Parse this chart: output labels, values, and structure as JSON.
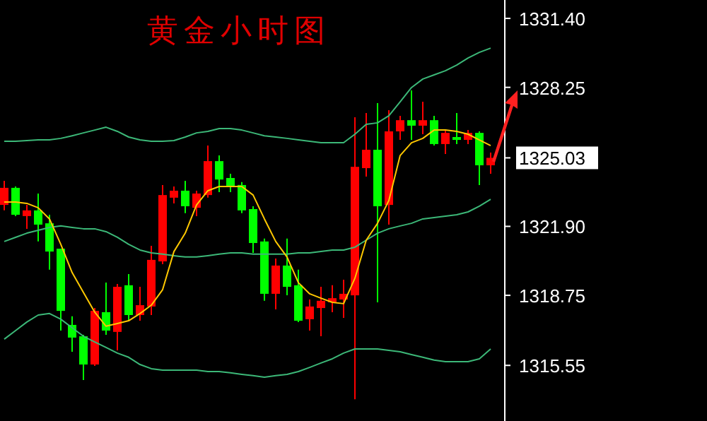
{
  "chart_data": {
    "type": "candlestick",
    "title": "黄金小时图",
    "categories": [
      null,
      null,
      null,
      null,
      null,
      null,
      null,
      null,
      null,
      null,
      null,
      null,
      null,
      null,
      null,
      null,
      null,
      null,
      null,
      null,
      null,
      null,
      null,
      null,
      null,
      null,
      null,
      null,
      null,
      null,
      null,
      null,
      null,
      null,
      null,
      null,
      null,
      null,
      null,
      null,
      null,
      null,
      null,
      null
    ],
    "ohlc": [
      [
        1322.88,
        1323.98,
        1322.63,
        1323.66
      ],
      [
        1323.66,
        1323.72,
        1322.37,
        1322.43
      ],
      [
        1322.37,
        1322.88,
        1321.79,
        1322.63
      ],
      [
        1322.63,
        1323.4,
        1321.21,
        1321.98
      ],
      [
        1322.04,
        1322.43,
        1319.92,
        1320.75
      ],
      [
        1320.88,
        1320.88,
        1317.14,
        1318.04
      ],
      [
        1317.4,
        1317.79,
        1316.17,
        1316.82
      ],
      [
        1316.88,
        1316.95,
        1314.88,
        1315.59
      ],
      [
        1315.59,
        1318.17,
        1315.53,
        1318.04
      ],
      [
        1317.98,
        1319.33,
        1316.95,
        1317.14
      ],
      [
        1317.08,
        1319.27,
        1316.24,
        1319.14
      ],
      [
        1319.21,
        1319.72,
        1317.59,
        1317.85
      ],
      [
        1317.85,
        1319.14,
        1317.59,
        1318.3
      ],
      [
        1318.24,
        1321.01,
        1317.85,
        1320.37
      ],
      [
        1320.3,
        1323.79,
        1320.17,
        1323.33
      ],
      [
        1323.21,
        1323.72,
        1322.95,
        1323.53
      ],
      [
        1323.53,
        1323.98,
        1322.5,
        1322.82
      ],
      [
        1322.75,
        1323.53,
        1322.37,
        1323.4
      ],
      [
        1323.33,
        1325.59,
        1323.21,
        1324.88
      ],
      [
        1324.88,
        1325.14,
        1323.46,
        1324.04
      ],
      [
        1324.11,
        1324.3,
        1323.46,
        1323.72
      ],
      [
        1323.79,
        1323.92,
        1322.5,
        1322.63
      ],
      [
        1322.69,
        1322.82,
        1320.69,
        1321.14
      ],
      [
        1321.21,
        1321.34,
        1318.5,
        1318.82
      ],
      [
        1318.82,
        1320.43,
        1318.11,
        1320.11
      ],
      [
        1320.11,
        1321.34,
        1318.75,
        1319.14
      ],
      [
        1319.21,
        1319.92,
        1317.53,
        1317.59
      ],
      [
        1317.66,
        1318.56,
        1317.14,
        1318.24
      ],
      [
        1318.17,
        1319.14,
        1316.88,
        1318.5
      ],
      [
        1318.43,
        1319.21,
        1317.98,
        1318.62
      ],
      [
        1318.56,
        1319.46,
        1317.72,
        1318.82
      ],
      [
        1318.75,
        1326.88,
        1314.0,
        1324.62
      ],
      [
        1324.56,
        1327.08,
        1324.17,
        1325.4
      ],
      [
        1325.4,
        1327.53,
        1318.43,
        1322.82
      ],
      [
        1322.88,
        1327.21,
        1321.98,
        1326.24
      ],
      [
        1326.24,
        1326.95,
        1325.85,
        1326.75
      ],
      [
        1326.75,
        1328.11,
        1325.85,
        1326.5
      ],
      [
        1326.5,
        1327.59,
        1326.11,
        1326.75
      ],
      [
        1326.75,
        1326.95,
        1325.59,
        1325.66
      ],
      [
        1325.66,
        1326.3,
        1325.21,
        1326.17
      ],
      [
        1325.98,
        1327.08,
        1325.66,
        1325.85
      ],
      [
        1325.85,
        1326.3,
        1325.66,
        1326.17
      ],
      [
        1326.17,
        1326.24,
        1323.79,
        1324.69
      ],
      [
        1324.69,
        1325.27,
        1324.3,
        1325.03
      ]
    ],
    "colors": [
      "#ff0000",
      "#00ff00",
      "#ff0000",
      "#00ff00",
      "#00ff00",
      "#00ff00",
      "#00ff00",
      "#00ff00",
      "#ff0000",
      "#00ff00",
      "#ff0000",
      "#00ff00",
      "#ff0000",
      "#ff0000",
      "#ff0000",
      "#ff0000",
      "#00ff00",
      "#ff0000",
      "#ff0000",
      "#00ff00",
      "#00ff00",
      "#00ff00",
      "#00ff00",
      "#00ff00",
      "#ff0000",
      "#00ff00",
      "#00ff00",
      "#ff0000",
      "#ff0000",
      "#ff0000",
      "#ff0000",
      "#ff0000",
      "#ff0000",
      "#00ff00",
      "#ff0000",
      "#ff0000",
      "#00ff00",
      "#ff0000",
      "#00ff00",
      "#ff0000",
      "#00ff00",
      "#ff0000",
      "#00ff00",
      "#ff0000"
    ],
    "series": [
      {
        "type": "line",
        "color": "#3cb878",
        "values": [
          1325.79,
          1325.79,
          1325.82,
          1325.85,
          1325.85,
          1325.92,
          1326.04,
          1326.17,
          1326.3,
          1326.43,
          1326.24,
          1325.98,
          1325.85,
          1325.79,
          1325.79,
          1325.82,
          1325.98,
          1326.17,
          1326.24,
          1326.37,
          1326.37,
          1326.3,
          1326.17,
          1326.04,
          1325.98,
          1325.92,
          1325.85,
          1325.79,
          1325.72,
          1325.72,
          1325.72,
          1326.11,
          1326.56,
          1326.63,
          1326.95,
          1327.59,
          1328.24,
          1328.63,
          1328.82,
          1329.01,
          1329.27,
          1329.59,
          1329.85,
          1330.04
        ]
      },
      {
        "type": "line",
        "color": "#3cb878",
        "values": [
          1321.21,
          1321.4,
          1321.59,
          1321.72,
          1321.85,
          1321.92,
          1321.85,
          1321.79,
          1321.79,
          1321.66,
          1321.4,
          1321.08,
          1320.82,
          1320.69,
          1320.63,
          1320.56,
          1320.5,
          1320.5,
          1320.56,
          1320.63,
          1320.69,
          1320.69,
          1320.63,
          1320.63,
          1320.63,
          1320.63,
          1320.69,
          1320.69,
          1320.75,
          1320.82,
          1320.82,
          1320.95,
          1321.27,
          1321.59,
          1321.79,
          1321.92,
          1322.04,
          1322.24,
          1322.3,
          1322.37,
          1322.43,
          1322.56,
          1322.82,
          1323.14
        ]
      },
      {
        "type": "line",
        "color": "#3cb878",
        "values": [
          1316.75,
          1317.14,
          1317.53,
          1317.85,
          1317.92,
          1317.66,
          1317.27,
          1316.88,
          1316.62,
          1316.37,
          1316.11,
          1315.92,
          1315.59,
          1315.4,
          1315.33,
          1315.33,
          1315.33,
          1315.33,
          1315.27,
          1315.27,
          1315.21,
          1315.14,
          1315.08,
          1315.01,
          1315.08,
          1315.14,
          1315.27,
          1315.46,
          1315.66,
          1315.85,
          1316.11,
          1316.3,
          1316.3,
          1316.3,
          1316.24,
          1316.17,
          1316.04,
          1315.92,
          1315.79,
          1315.72,
          1315.72,
          1315.72,
          1315.85,
          1316.3
        ]
      },
      {
        "type": "line",
        "color": "#ffc800",
        "values": [
          1323.01,
          1323.01,
          1322.95,
          1322.75,
          1322.24,
          1321.08,
          1319.79,
          1318.88,
          1317.98,
          1317.34,
          1317.46,
          1317.59,
          1317.92,
          1318.3,
          1319.01,
          1320.75,
          1321.59,
          1322.88,
          1323.53,
          1323.72,
          1323.72,
          1323.72,
          1323.33,
          1322.24,
          1321.21,
          1320.5,
          1319.33,
          1318.82,
          1318.62,
          1318.43,
          1318.37,
          1319.53,
          1321.27,
          1322.04,
          1323.08,
          1325.14,
          1325.72,
          1325.92,
          1326.3,
          1326.3,
          1326.24,
          1326.11,
          1325.85,
          1325.59
        ]
      }
    ],
    "ylim": [
      1313.01,
      1332.24
    ],
    "yticks": [
      {
        "value": 1315.55,
        "label": "1315.55"
      },
      {
        "value": 1318.75,
        "label": "1318.75"
      },
      {
        "value": 1321.9,
        "label": "1321.90"
      },
      {
        "value": 1325.03,
        "label": "1325.03"
      },
      {
        "value": 1328.25,
        "label": "1328.25"
      },
      {
        "value": 1331.4,
        "label": "1331.40"
      }
    ],
    "tick_labels": "y"
  }
}
